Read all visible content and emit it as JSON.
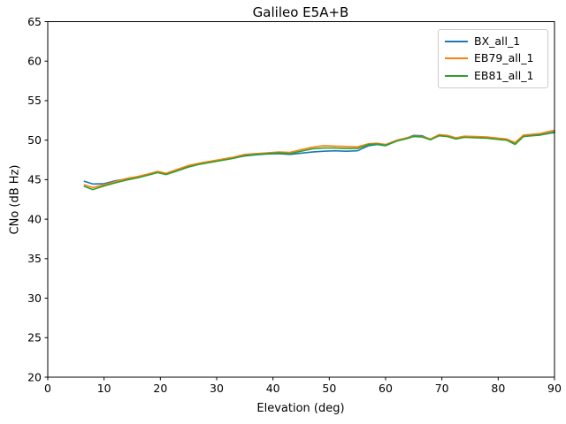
{
  "window": {
    "background": "#ffffff",
    "text_color": "#000000"
  },
  "chart_data": {
    "type": "line",
    "title": "Galileo E5A+B",
    "xlabel": "Elevation (deg)",
    "ylabel": "CNo (dB Hz)",
    "xlim": [
      0,
      90
    ],
    "ylim": [
      20,
      65
    ],
    "x_ticks": [
      0,
      10,
      20,
      30,
      40,
      50,
      60,
      70,
      80,
      90
    ],
    "y_ticks": [
      20,
      25,
      30,
      35,
      40,
      45,
      50,
      55,
      60,
      65
    ],
    "grid": false,
    "legend_position": "upper right",
    "axis_color": "#000000",
    "x": [
      6.5,
      8,
      10,
      12,
      14,
      16,
      18,
      19.5,
      21,
      23,
      25,
      27,
      29,
      31,
      33,
      35,
      37,
      39,
      41,
      43,
      45,
      47,
      49,
      51,
      53,
      55,
      57,
      58.5,
      60,
      62,
      63.5,
      65,
      66.5,
      68,
      69.5,
      71,
      72.5,
      74,
      76,
      78,
      80,
      81.5,
      83,
      84.5,
      86,
      87.5,
      89,
      90
    ],
    "series": [
      {
        "name": "BX_all_1",
        "color": "#1f77b4",
        "values": [
          44.8,
          44.45,
          44.5,
          44.85,
          45.1,
          45.35,
          45.7,
          46.0,
          45.75,
          46.2,
          46.7,
          47.0,
          47.25,
          47.5,
          47.75,
          48.0,
          48.15,
          48.25,
          48.3,
          48.2,
          48.35,
          48.5,
          48.6,
          48.65,
          48.6,
          48.65,
          49.3,
          49.45,
          49.3,
          49.9,
          50.2,
          50.6,
          50.55,
          50.1,
          50.65,
          50.55,
          50.25,
          50.45,
          50.4,
          50.35,
          50.2,
          50.1,
          49.65,
          50.55,
          50.65,
          50.7,
          50.9,
          51.05
        ]
      },
      {
        "name": "EB79_all_1",
        "color": "#ff7f0e",
        "values": [
          44.35,
          44.0,
          44.35,
          44.75,
          45.15,
          45.4,
          45.75,
          46.05,
          45.8,
          46.3,
          46.8,
          47.1,
          47.35,
          47.6,
          47.85,
          48.2,
          48.3,
          48.4,
          48.5,
          48.45,
          48.8,
          49.1,
          49.3,
          49.25,
          49.2,
          49.15,
          49.55,
          49.6,
          49.45,
          50.0,
          50.25,
          50.5,
          50.45,
          50.15,
          50.7,
          50.6,
          50.3,
          50.5,
          50.45,
          50.4,
          50.25,
          50.15,
          49.7,
          50.65,
          50.75,
          50.85,
          51.1,
          51.25
        ]
      },
      {
        "name": "EB81_all_1",
        "color": "#2ca02c",
        "values": [
          44.15,
          43.75,
          44.2,
          44.6,
          44.95,
          45.25,
          45.6,
          45.9,
          45.65,
          46.1,
          46.6,
          46.95,
          47.2,
          47.45,
          47.7,
          48.05,
          48.2,
          48.3,
          48.4,
          48.3,
          48.6,
          48.9,
          49.0,
          49.0,
          48.95,
          48.95,
          49.45,
          49.5,
          49.35,
          49.9,
          50.15,
          50.45,
          50.4,
          50.05,
          50.55,
          50.45,
          50.15,
          50.35,
          50.3,
          50.25,
          50.1,
          50.0,
          49.45,
          50.45,
          50.55,
          50.65,
          50.85,
          50.95
        ]
      }
    ]
  }
}
